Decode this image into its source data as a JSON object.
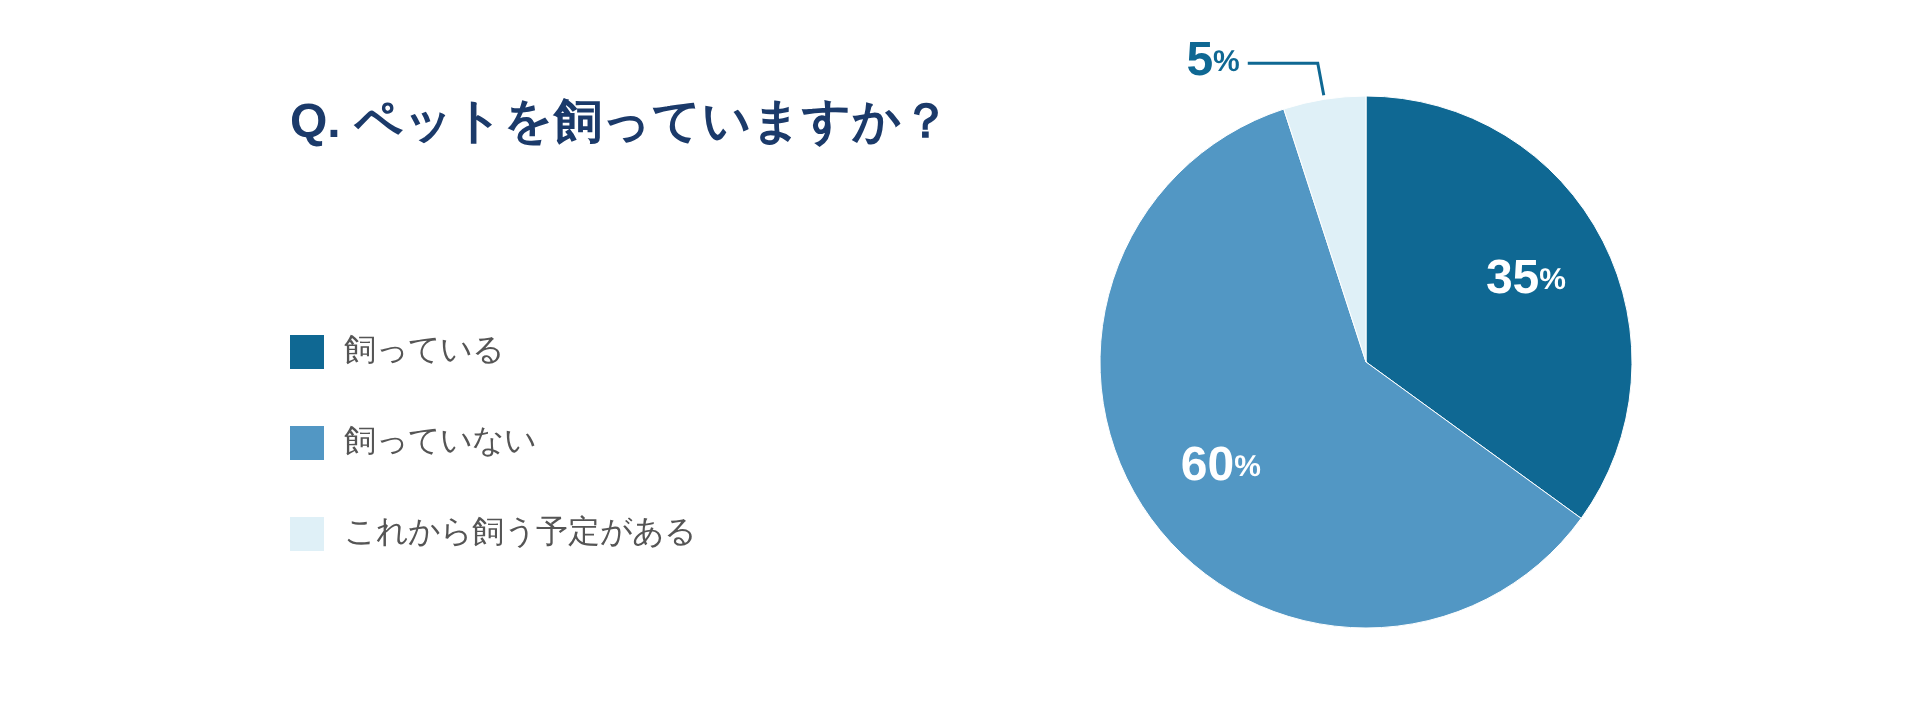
{
  "chart_data": {
    "type": "pie",
    "title": "Q. ペットを飼っていますか？",
    "categories": [
      "飼っている",
      "飼っていない",
      "これから飼う予定がある"
    ],
    "values": [
      35,
      60,
      5
    ],
    "colors": [
      "#0f6893",
      "#5297c4",
      "#dff0f7"
    ],
    "value_labels": [
      "35%",
      "60%",
      "5%"
    ],
    "legend": "left"
  }
}
